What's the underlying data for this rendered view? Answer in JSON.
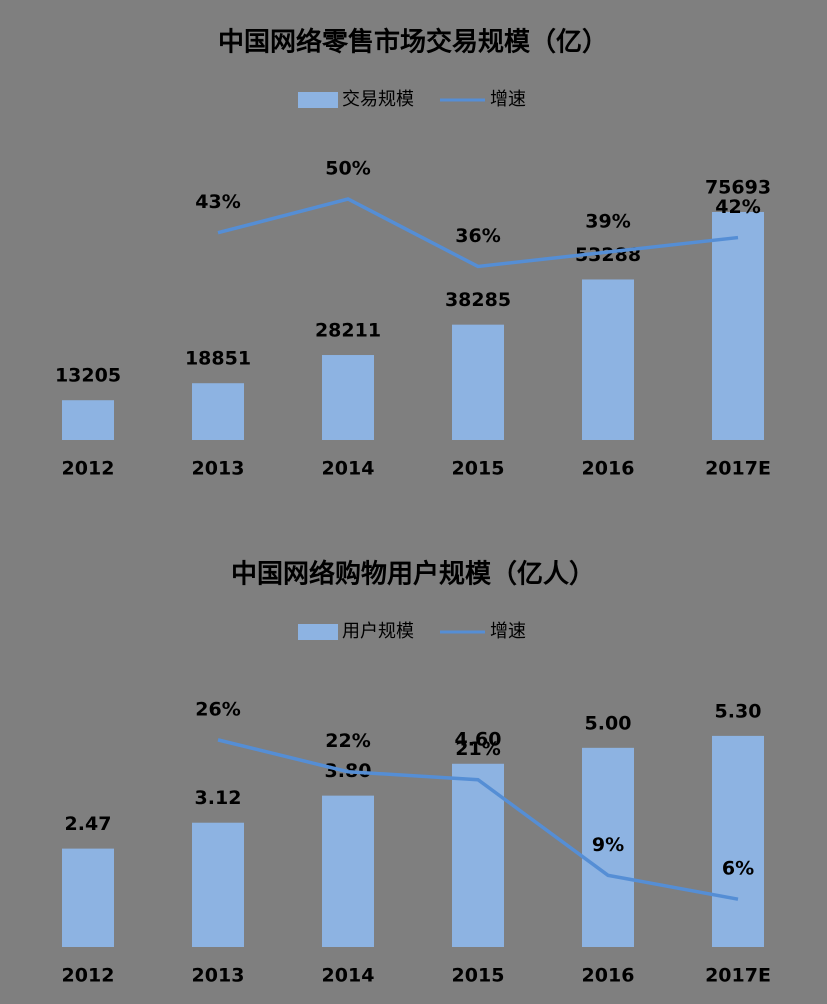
{
  "chart_data": [
    {
      "type": "combo",
      "title": "中国网络零售市场交易规模（亿）",
      "categories": [
        "2012",
        "2013",
        "2014",
        "2015",
        "2016",
        "2017E"
      ],
      "series": [
        {
          "name": "交易规模",
          "type": "bar",
          "color": "#8db3e2",
          "values": [
            13205,
            18851,
            28211,
            38285,
            53288,
            75693
          ]
        },
        {
          "name": "增速",
          "type": "line",
          "axis": "y2",
          "color": "#558ed5",
          "values": [
            null,
            43,
            50,
            36,
            39,
            42
          ],
          "value_labels": [
            null,
            "43%",
            "50%",
            "36%",
            "39%",
            "42%"
          ]
        }
      ],
      "ylim": [
        0,
        80000
      ],
      "y2lim": [
        0,
        50
      ],
      "legend": "top"
    },
    {
      "type": "combo",
      "title": "中国网络购物用户规模（亿人）",
      "categories": [
        "2012",
        "2013",
        "2014",
        "2015",
        "2016",
        "2017E"
      ],
      "series": [
        {
          "name": "用户规模",
          "type": "bar",
          "color": "#8db3e2",
          "values": [
            2.47,
            3.12,
            3.8,
            4.6,
            5.0,
            5.3
          ],
          "value_labels": [
            "2.47",
            "3.12",
            "3.80",
            "4.60",
            "5.00",
            "5.30"
          ]
        },
        {
          "name": "增速",
          "type": "line",
          "axis": "y2",
          "color": "#558ed5",
          "values": [
            null,
            26,
            22,
            21,
            9,
            6
          ],
          "value_labels": [
            null,
            "26%",
            "22%",
            "21%",
            "9%",
            "6%"
          ]
        }
      ],
      "ylim": [
        0,
        6
      ],
      "y2lim": [
        0,
        30
      ],
      "legend": "top"
    }
  ]
}
